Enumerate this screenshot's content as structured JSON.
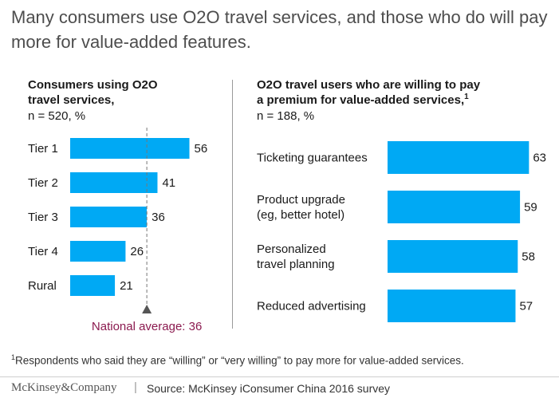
{
  "title": "Many consumers use O2O travel services, and those who do will pay more for value-added features.",
  "chart_data": [
    {
      "type": "bar",
      "orientation": "horizontal",
      "title_line1": "Consumers using O2O",
      "title_line2": "travel services,",
      "sample_note": "n = 520, %",
      "categories": [
        "Tier 1",
        "Tier 2",
        "Tier 3",
        "Tier 4",
        "Rural"
      ],
      "values": [
        56,
        41,
        36,
        26,
        21
      ],
      "reference_line": {
        "value": 36,
        "label": "National average: 36",
        "color": "#8b1a4f"
      },
      "bar_color": "#00a9f4"
    },
    {
      "type": "bar",
      "orientation": "horizontal",
      "title_line1": "O2O travel users who are willing to pay",
      "title_line2": "a premium for value-added services,",
      "title_footnote_mark": "1",
      "sample_note": "n = 188, %",
      "categories": [
        [
          "Ticketing guarantees"
        ],
        [
          "Product upgrade",
          "(eg, better hotel)"
        ],
        [
          "Personalized",
          "travel planning"
        ],
        [
          "Reduced advertising"
        ]
      ],
      "values": [
        63,
        59,
        58,
        57
      ],
      "bar_color": "#00a9f4"
    }
  ],
  "footnote_mark": "1",
  "footnote": "Respondents who said they are “willing” or “very willing” to pay more for value-added services.",
  "brand": "McKinsey&Company",
  "separator": "|",
  "source": "Source: McKinsey iConsumer China 2016 survey"
}
